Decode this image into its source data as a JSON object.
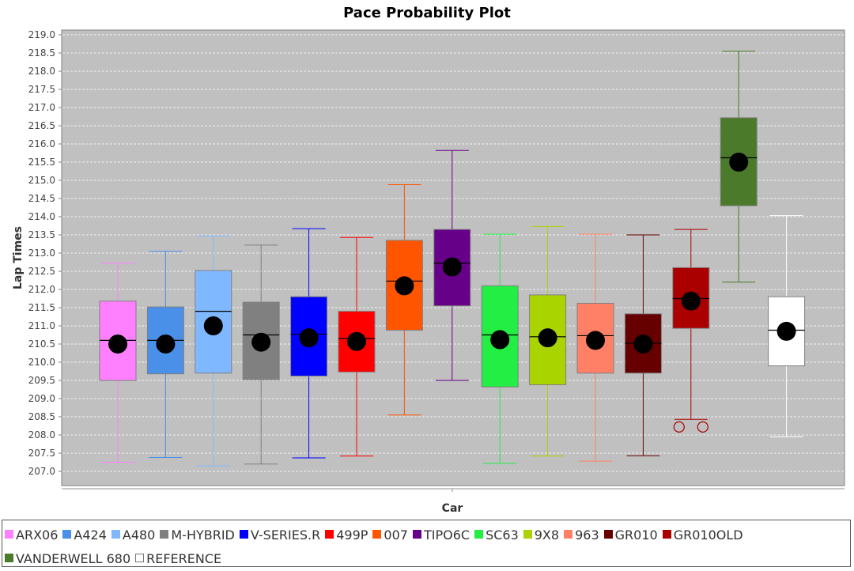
{
  "chart_data": {
    "type": "box",
    "title": "Pace Probability Plot",
    "xlabel": "Car",
    "ylabel": "Lap Times",
    "ylim": [
      206.8,
      219.1
    ],
    "yticks": [
      219.0,
      218.5,
      218.0,
      217.5,
      217.0,
      216.5,
      216.0,
      215.5,
      215.0,
      214.5,
      214.0,
      213.5,
      213.0,
      212.5,
      212.0,
      211.5,
      211.0,
      210.5,
      210.0,
      209.5,
      209.0,
      208.5,
      208.0,
      207.5,
      207.0
    ],
    "grid": true,
    "legend_position": "bottom",
    "series": [
      {
        "name": "ARX06",
        "color": "#ff80ff",
        "min": 207.25,
        "q1": 209.5,
        "median": 210.6,
        "q3": 211.68,
        "max": 212.72,
        "mean": 210.5,
        "outliers": []
      },
      {
        "name": "A424",
        "color": "#4a90e8",
        "min": 207.38,
        "q1": 209.68,
        "median": 210.6,
        "q3": 211.52,
        "max": 213.05,
        "mean": 210.5,
        "outliers": []
      },
      {
        "name": "A480",
        "color": "#80b8ff",
        "min": 207.15,
        "q1": 209.7,
        "median": 211.4,
        "q3": 212.52,
        "max": 213.47,
        "mean": 211.0,
        "outliers": []
      },
      {
        "name": "M-HYBRID",
        "color": "#808080",
        "min": 207.2,
        "q1": 209.52,
        "median": 210.75,
        "q3": 211.65,
        "max": 213.22,
        "mean": 210.55,
        "outliers": []
      },
      {
        "name": "V-SERIES.R",
        "color": "#0000ff",
        "min": 207.37,
        "q1": 209.62,
        "median": 210.77,
        "q3": 211.8,
        "max": 213.67,
        "mean": 210.67,
        "outliers": []
      },
      {
        "name": "499P",
        "color": "#ff0000",
        "min": 207.42,
        "q1": 209.73,
        "median": 210.65,
        "q3": 211.4,
        "max": 213.43,
        "mean": 210.57,
        "outliers": []
      },
      {
        "name": "007",
        "color": "#ff5500",
        "min": 208.55,
        "q1": 210.88,
        "median": 212.23,
        "q3": 213.35,
        "max": 214.88,
        "mean": 212.1,
        "outliers": []
      },
      {
        "name": "TIPO6C",
        "color": "#660088",
        "min": 209.5,
        "q1": 211.55,
        "median": 212.72,
        "q3": 213.65,
        "max": 215.82,
        "mean": 212.62,
        "outliers": []
      },
      {
        "name": "SC63",
        "color": "#22ee44",
        "min": 207.22,
        "q1": 209.32,
        "median": 210.75,
        "q3": 212.1,
        "max": 213.52,
        "mean": 210.62,
        "outliers": []
      },
      {
        "name": "9X8",
        "color": "#aad400",
        "min": 207.42,
        "q1": 209.38,
        "median": 210.7,
        "q3": 211.85,
        "max": 213.73,
        "mean": 210.67,
        "outliers": []
      },
      {
        "name": "963",
        "color": "#ff8066",
        "min": 207.28,
        "q1": 209.7,
        "median": 210.73,
        "q3": 211.62,
        "max": 213.52,
        "mean": 210.6,
        "outliers": []
      },
      {
        "name": "GR010",
        "color": "#660000",
        "min": 207.43,
        "q1": 209.7,
        "median": 210.52,
        "q3": 211.33,
        "max": 213.5,
        "mean": 210.5,
        "outliers": []
      },
      {
        "name": "GR010OLD",
        "color": "#aa0000",
        "min": 208.43,
        "q1": 210.93,
        "median": 211.75,
        "q3": 212.6,
        "max": 213.65,
        "mean": 211.68,
        "outliers": [
          208.22
        ]
      },
      {
        "name": "VANDERWELL 680",
        "color": "#4a7a2a",
        "min": 212.2,
        "q1": 214.3,
        "median": 215.62,
        "q3": 216.72,
        "max": 218.55,
        "mean": 215.5,
        "outliers": []
      },
      {
        "name": "REFERENCE",
        "color": "#ffffff",
        "min": 207.95,
        "q1": 209.9,
        "median": 210.88,
        "q3": 211.8,
        "max": 214.03,
        "mean": 210.85,
        "outliers": []
      }
    ]
  }
}
